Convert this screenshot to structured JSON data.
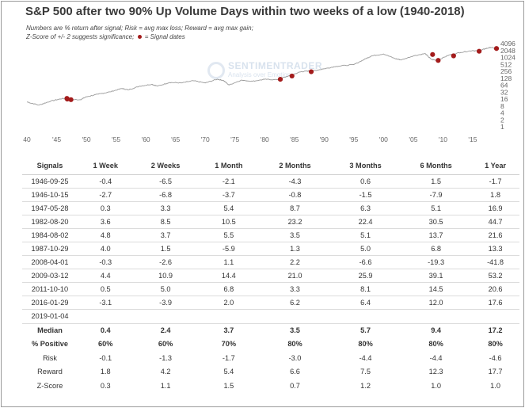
{
  "title": "S&P 500 after two 90% Up Volume Days within two weeks of a low (1940-2018)",
  "notes": {
    "line1": "Numbers are % return after signal; Risk = avg max loss; Reward = avg max gain;",
    "line2_prefix": "Z-Score of +/- 2 suggests significance;",
    "line2_suffix": "= Signal dates"
  },
  "watermark": {
    "name": "SENTIMENTRADER",
    "tagline": "Analysis over Emotion"
  },
  "colors": {
    "line": "#9a9a9a",
    "signal": "#a31b1b",
    "negative": "#b12a2a"
  },
  "chart_data": {
    "type": "line",
    "yscale": "log2",
    "ylim": [
      1,
      4096
    ],
    "xlim": [
      1940,
      2019
    ],
    "yticks": [
      "4096",
      "2048",
      "1024",
      "512",
      "256",
      "128",
      "64",
      "32",
      "16",
      "8",
      "4",
      "2",
      "1"
    ],
    "xticks": [
      {
        "year": 1940,
        "label": "40"
      },
      {
        "year": 1945,
        "label": "'45"
      },
      {
        "year": 1950,
        "label": "'50"
      },
      {
        "year": 1955,
        "label": "'55"
      },
      {
        "year": 1960,
        "label": "'60"
      },
      {
        "year": 1965,
        "label": "'65"
      },
      {
        "year": 1970,
        "label": "'70"
      },
      {
        "year": 1975,
        "label": "'75"
      },
      {
        "year": 1980,
        "label": "'80"
      },
      {
        "year": 1985,
        "label": "'85"
      },
      {
        "year": 1990,
        "label": "'90"
      },
      {
        "year": 1995,
        "label": "'95"
      },
      {
        "year": 2000,
        "label": "'00"
      },
      {
        "year": 2005,
        "label": "'05"
      },
      {
        "year": 2010,
        "label": "'10"
      },
      {
        "year": 2015,
        "label": "'15"
      }
    ],
    "series": [
      {
        "x": [
          1940,
          1942,
          1944,
          1946,
          1947,
          1949,
          1950,
          1952,
          1954,
          1956,
          1957,
          1959,
          1961,
          1962,
          1964,
          1966,
          1968,
          1970,
          1972,
          1973,
          1974,
          1976,
          1978,
          1980,
          1982,
          1984,
          1986,
          1987,
          1988,
          1990,
          1992,
          1995,
          1997,
          1998,
          2000,
          2002,
          2003,
          2005,
          2007,
          2008,
          2009,
          2011,
          2013,
          2015,
          2016,
          2017,
          2018,
          2019
        ],
        "y": [
          12,
          8.7,
          13,
          17,
          15,
          15,
          20,
          26,
          33,
          46,
          40,
          58,
          70,
          58,
          84,
          80,
          100,
          80,
          115,
          105,
          65,
          105,
          95,
          115,
          110,
          160,
          240,
          260,
          265,
          330,
          420,
          500,
          900,
          1200,
          1450,
          900,
          800,
          1200,
          1500,
          850,
          760,
          1300,
          1700,
          2050,
          1900,
          2400,
          2800,
          2500
        ]
      }
    ],
    "signals": [
      {
        "x": 1946.73,
        "y": 17
      },
      {
        "x": 1946.79,
        "y": 16
      },
      {
        "x": 1947.41,
        "y": 15
      },
      {
        "x": 1982.63,
        "y": 115
      },
      {
        "x": 1984.59,
        "y": 160
      },
      {
        "x": 1987.83,
        "y": 245
      },
      {
        "x": 2008.25,
        "y": 1370
      },
      {
        "x": 2009.19,
        "y": 760
      },
      {
        "x": 2011.78,
        "y": 1200
      },
      {
        "x": 2016.08,
        "y": 1900
      },
      {
        "x": 2019.0,
        "y": 2500
      }
    ]
  },
  "table": {
    "headers": [
      "Signals",
      "1 Week",
      "2 Weeks",
      "1 Month",
      "2 Months",
      "3 Months",
      "6 Months",
      "1 Year"
    ],
    "rows": [
      [
        "1946-09-25",
        "-0.4",
        "-6.5",
        "-2.1",
        "-4.3",
        "0.6",
        "1.5",
        "-1.7"
      ],
      [
        "1946-10-15",
        "-2.7",
        "-6.8",
        "-3.7",
        "-0.8",
        "-1.5",
        "-7.9",
        "1.8"
      ],
      [
        "1947-05-28",
        "0.3",
        "3.3",
        "5.4",
        "8.7",
        "6.3",
        "5.1",
        "16.9"
      ],
      [
        "1982-08-20",
        "3.6",
        "8.5",
        "10.5",
        "23.2",
        "22.4",
        "30.5",
        "44.7"
      ],
      [
        "1984-08-02",
        "4.8",
        "3.7",
        "5.5",
        "3.5",
        "5.1",
        "13.7",
        "21.6"
      ],
      [
        "1987-10-29",
        "4.0",
        "1.5",
        "-5.9",
        "1.3",
        "5.0",
        "6.8",
        "13.3"
      ],
      [
        "2008-04-01",
        "-0.3",
        "-2.6",
        "1.1",
        "2.2",
        "-6.6",
        "-19.3",
        "-41.8"
      ],
      [
        "2009-03-12",
        "4.4",
        "10.9",
        "14.4",
        "21.0",
        "25.9",
        "39.1",
        "53.2"
      ],
      [
        "2011-10-10",
        "0.5",
        "5.0",
        "6.8",
        "3.3",
        "8.1",
        "14.5",
        "20.6"
      ],
      [
        "2016-01-29",
        "-3.1",
        "-3.9",
        "2.0",
        "6.2",
        "6.4",
        "12.0",
        "17.6"
      ],
      [
        "2019-01-04",
        "",
        "",
        "",
        "",
        "",
        "",
        ""
      ]
    ],
    "summary": [
      {
        "label": "Median",
        "bold": true,
        "values": [
          "0.4",
          "2.4",
          "3.7",
          "3.5",
          "5.7",
          "9.4",
          "17.2"
        ]
      },
      {
        "label": "% Positive",
        "bold": true,
        "values": [
          "60%",
          "60%",
          "70%",
          "80%",
          "80%",
          "80%",
          "80%"
        ]
      },
      {
        "label": "Risk",
        "bold": false,
        "values": [
          "-0.1",
          "-1.3",
          "-1.7",
          "-3.0",
          "-4.4",
          "-4.4",
          "-4.6"
        ]
      },
      {
        "label": "Reward",
        "bold": false,
        "values": [
          "1.8",
          "4.2",
          "5.4",
          "6.6",
          "7.5",
          "12.3",
          "17.7"
        ]
      },
      {
        "label": "Z-Score",
        "bold": false,
        "values": [
          "0.3",
          "1.1",
          "1.5",
          "0.7",
          "1.2",
          "1.0",
          "1.0"
        ]
      }
    ]
  }
}
